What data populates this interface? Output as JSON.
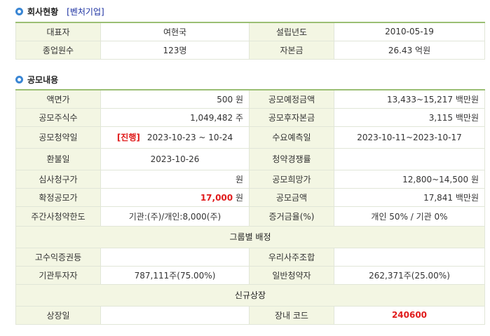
{
  "company_section": {
    "title": "회사현황",
    "badge": "[벤처기업]",
    "rows": [
      {
        "l1": "대표자",
        "v1": "여현국",
        "l2": "설립년도",
        "v2": "2010-05-19"
      },
      {
        "l1": "종업원수",
        "v1": "123명",
        "l2": "자본금",
        "v2": "26.43 억원"
      }
    ]
  },
  "offering_section": {
    "title": "공모내용",
    "face_value": {
      "label": "액면가",
      "value": "500 원"
    },
    "expected_amount": {
      "label": "공모예정금액",
      "value": "13,433~15,217 백만원"
    },
    "shares": {
      "label": "공모주식수",
      "value": "1,049,482 주"
    },
    "post_capital": {
      "label": "공모후자본금",
      "value": "3,115 백만원"
    },
    "subscription_date": {
      "label": "공모청약일",
      "status": "[진행]",
      "value": "2023-10-23 ~ 10-24"
    },
    "demand_forecast": {
      "label": "수요예측일",
      "value": "2023-10-11~2023-10-17"
    },
    "refund_date": {
      "label": "환불일",
      "value": "2023-10-26"
    },
    "competition": {
      "label": "청약경쟁률",
      "value": ""
    },
    "review_price": {
      "label": "심사청구가",
      "value": "원"
    },
    "desired_price": {
      "label": "공모희망가",
      "value": "12,800~14,500 원"
    },
    "fixed_price": {
      "label": "확정공모가",
      "value_num": "17,000",
      "value_unit": " 원"
    },
    "offering_amount": {
      "label": "공모금액",
      "value": "17,841 백만원"
    },
    "lead_limit": {
      "label": "주간사청약한도",
      "value": "기관:(주)/개인:8,000(주)"
    },
    "deposit_rate": {
      "label": "증거금율(%)",
      "value": "개인 50% / 기관 0%"
    },
    "group_header": "그룹별 배정",
    "high_yield": {
      "label": "고수익증권등",
      "value": ""
    },
    "employee_union": {
      "label": "우리사주조합",
      "value": ""
    },
    "institution": {
      "label": "기관투자자",
      "value": "787,111주(75.00%)"
    },
    "retail": {
      "label": "일반청약자",
      "value": "262,371주(25.00%)"
    },
    "listing_header": "신규상장",
    "listing_date": {
      "label": "상장일",
      "value": ""
    },
    "ticker": {
      "label": "장내 코드",
      "value": "240600"
    }
  },
  "colors": {
    "label_bg": "#f3f6e3",
    "border_top": "#9bbf74",
    "accent_red": "#e01b1b",
    "bullet": "#3a86d4",
    "badge": "#1a2fa0"
  }
}
